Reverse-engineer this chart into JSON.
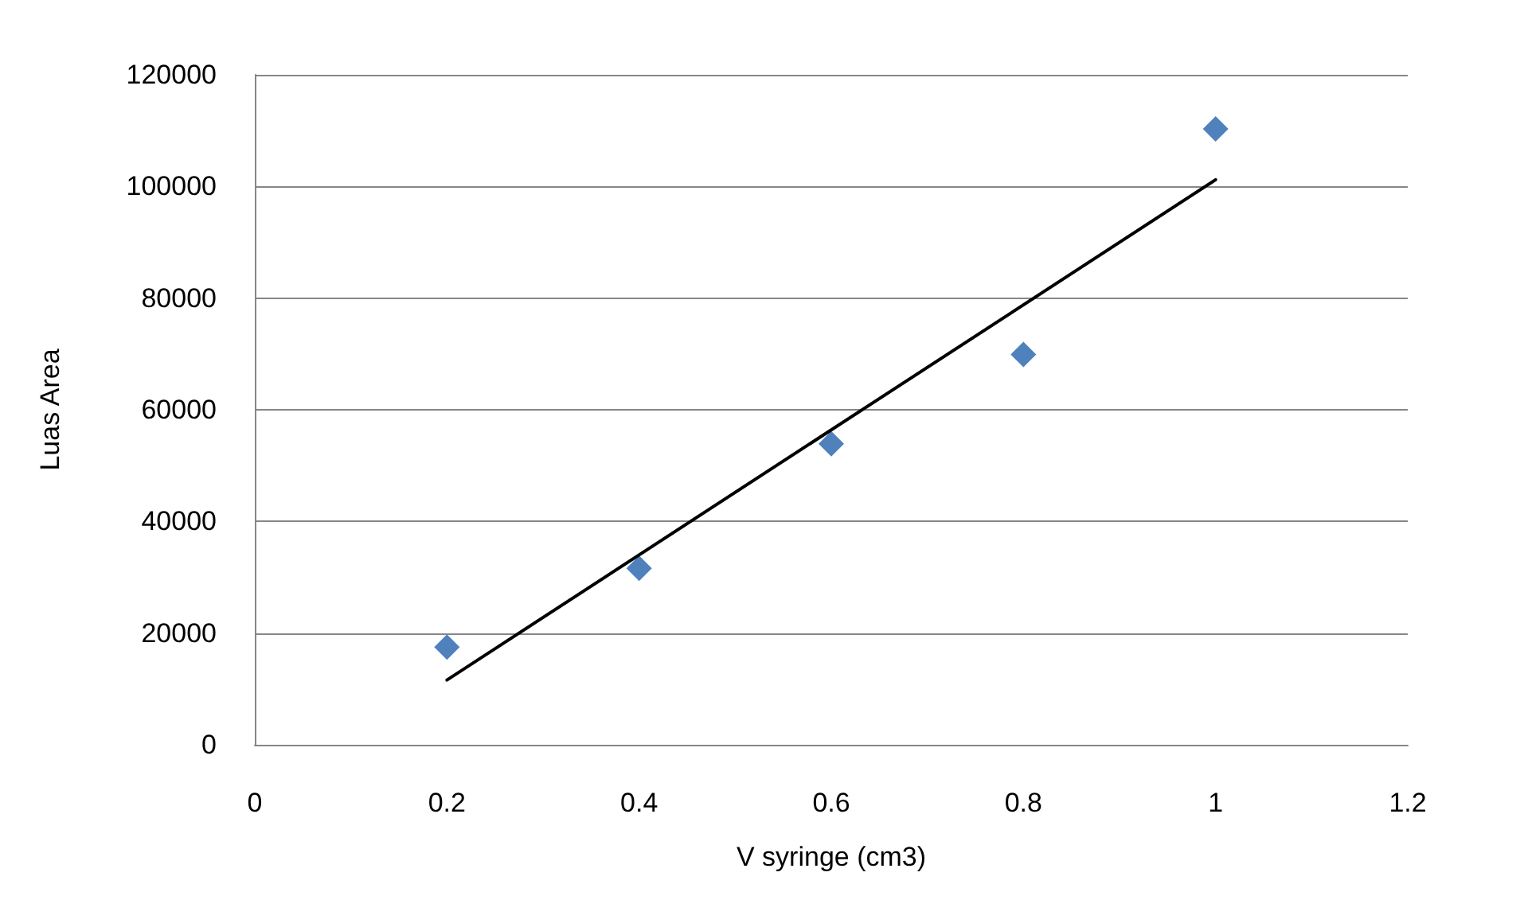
{
  "chart_data": {
    "type": "scatter",
    "xlabel": "V syringe (cm3)",
    "ylabel": "Luas Area",
    "marker": "diamond",
    "grid": "y",
    "xlim": [
      0,
      1.2
    ],
    "xticks": [
      0,
      0.2,
      0.4,
      0.6,
      0.8,
      1,
      1.2
    ],
    "ylim": [
      0,
      120000
    ],
    "yticks": [
      0,
      20000,
      40000,
      60000,
      80000,
      100000,
      120000
    ],
    "series": [
      {
        "color": "#4f81bd",
        "x": [
          0.2,
          0.4,
          0.6,
          0.8,
          1
        ],
        "values": [
          17500,
          31600,
          53900,
          69900,
          110300
        ]
      },
      {
        "type": "line",
        "color": "#000000",
        "marker": "none",
        "x": [
          0.2,
          1
        ],
        "values": [
          11600,
          101200
        ]
      }
    ]
  }
}
